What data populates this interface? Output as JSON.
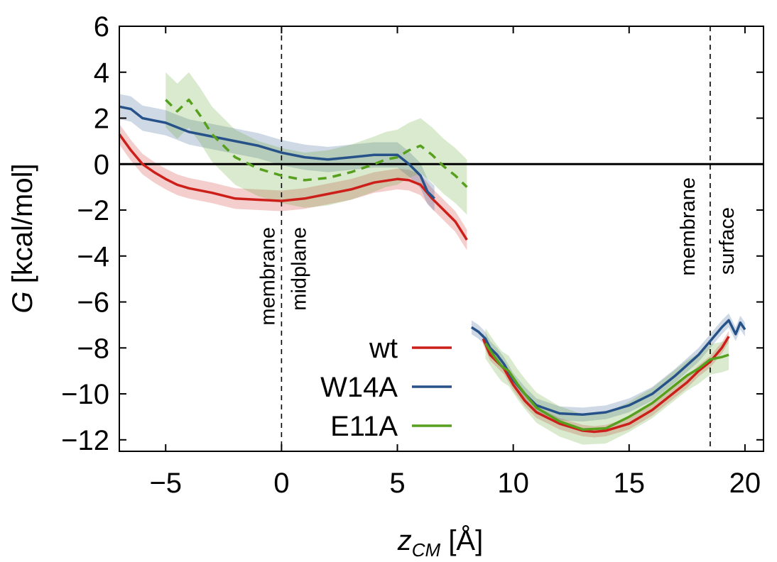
{
  "chart_data": {
    "type": "line",
    "xlabel_var": "z",
    "xlabel_sub": "CM",
    "xlabel_unit": " [Å]",
    "ylabel_var": "G",
    "ylabel_unit": " [kcal/mol]",
    "xlim": [
      -7,
      20.8
    ],
    "ylim": [
      -12.5,
      6
    ],
    "xticks": [
      -5,
      0,
      5,
      10,
      15,
      20
    ],
    "yticks": [
      6,
      4,
      2,
      0,
      -2,
      -4,
      -6,
      -8,
      -10,
      -12
    ],
    "zero_line": 0,
    "grid": false,
    "legend_position": "center-bottom",
    "annotations": [
      {
        "x": 0,
        "lines": [
          "membrane",
          "midplane"
        ]
      },
      {
        "x": 18.5,
        "lines": [
          "membrane",
          "surface"
        ]
      }
    ],
    "series": [
      {
        "name": "wt",
        "color": "#cc1f1a",
        "dashed": false,
        "band": 0.45,
        "segments": [
          [
            [
              -7,
              1.3
            ],
            [
              -6.5,
              0.6
            ],
            [
              -6,
              0.0
            ],
            [
              -5.5,
              -0.35
            ],
            [
              -5,
              -0.65
            ],
            [
              -4.5,
              -0.9
            ],
            [
              -4,
              -1.05
            ],
            [
              -3,
              -1.25
            ],
            [
              -2,
              -1.5
            ],
            [
              -1,
              -1.55
            ],
            [
              0,
              -1.6
            ],
            [
              1,
              -1.5
            ],
            [
              2,
              -1.3
            ],
            [
              3,
              -1.1
            ],
            [
              4,
              -0.8
            ],
            [
              5,
              -0.65
            ],
            [
              5.5,
              -0.7
            ],
            [
              6,
              -0.9
            ],
            [
              6.5,
              -1.5
            ],
            [
              7,
              -2.0
            ],
            [
              7.5,
              -2.5
            ],
            [
              8,
              -3.3
            ]
          ],
          [
            [
              8.7,
              -7.6
            ],
            [
              9,
              -8.3
            ],
            [
              9.3,
              -8.6
            ],
            [
              9.6,
              -8.9
            ],
            [
              10,
              -9.6
            ],
            [
              10.5,
              -10.3
            ],
            [
              11,
              -10.8
            ],
            [
              12,
              -11.3
            ],
            [
              13,
              -11.6
            ],
            [
              13.5,
              -11.65
            ],
            [
              14,
              -11.6
            ],
            [
              15,
              -11.3
            ],
            [
              16,
              -10.7
            ],
            [
              17,
              -9.9
            ],
            [
              17.5,
              -9.5
            ],
            [
              18,
              -9.0
            ],
            [
              18.5,
              -8.6
            ],
            [
              19,
              -8.0
            ],
            [
              19.3,
              -7.5
            ]
          ]
        ]
      },
      {
        "name": "W14A",
        "color": "#265289",
        "dashed": false,
        "band": 0.55,
        "segments": [
          [
            [
              -7,
              2.5
            ],
            [
              -6.5,
              2.4
            ],
            [
              -6,
              2.0
            ],
            [
              -5.5,
              1.9
            ],
            [
              -5,
              1.8
            ],
            [
              -4.5,
              1.6
            ],
            [
              -4,
              1.4
            ],
            [
              -3,
              1.2
            ],
            [
              -2,
              1.0
            ],
            [
              -1,
              0.8
            ],
            [
              0,
              0.5
            ],
            [
              1,
              0.3
            ],
            [
              2,
              0.2
            ],
            [
              3,
              0.3
            ],
            [
              4,
              0.4
            ],
            [
              5,
              0.4
            ],
            [
              5.5,
              0.0
            ],
            [
              6,
              -0.5
            ],
            [
              6.3,
              -1.2
            ],
            [
              6.6,
              -1.5
            ]
          ],
          [
            [
              8.2,
              -7.1
            ],
            [
              8.5,
              -7.3
            ],
            [
              8.8,
              -7.6
            ],
            [
              9,
              -8.0
            ],
            [
              9.3,
              -8.3
            ],
            [
              9.6,
              -8.7
            ],
            [
              10,
              -9.4
            ],
            [
              10.5,
              -10.0
            ],
            [
              11,
              -10.5
            ],
            [
              12,
              -10.85
            ],
            [
              13,
              -10.9
            ],
            [
              14,
              -10.8
            ],
            [
              15,
              -10.5
            ],
            [
              16,
              -10.0
            ],
            [
              17,
              -9.2
            ],
            [
              18,
              -8.3
            ],
            [
              18.5,
              -7.7
            ],
            [
              19,
              -7.1
            ],
            [
              19.3,
              -6.8
            ],
            [
              19.6,
              -7.4
            ],
            [
              19.8,
              -6.9
            ],
            [
              20,
              -7.2
            ]
          ]
        ]
      },
      {
        "name": "E11A",
        "color": "#56a01e",
        "dashed": true,
        "band": 1.2,
        "segments": [
          [
            [
              -5,
              2.8
            ],
            [
              -4.5,
              2.3
            ],
            [
              -4,
              2.8
            ],
            [
              -3.5,
              2.1
            ],
            [
              -3,
              1.3
            ],
            [
              -2.5,
              0.8
            ],
            [
              -2,
              0.3
            ],
            [
              -1,
              -0.2
            ],
            [
              0,
              -0.5
            ],
            [
              1,
              -0.7
            ],
            [
              2,
              -0.6
            ],
            [
              3,
              -0.35
            ],
            [
              4,
              0.0
            ],
            [
              4.5,
              0.2
            ],
            [
              5,
              0.3
            ],
            [
              5.5,
              0.6
            ],
            [
              6,
              0.8
            ],
            [
              6.5,
              0.4
            ],
            [
              7,
              -0.1
            ],
            [
              7.5,
              -0.5
            ],
            [
              8,
              -1.0
            ]
          ]
        ],
        "solid_segments": [
          [
            [
              8.8,
              -7.8
            ],
            [
              9.2,
              -8.4
            ],
            [
              9.5,
              -8.8
            ],
            [
              9.8,
              -9.0
            ],
            [
              10.2,
              -9.6
            ],
            [
              10.5,
              -10.0
            ],
            [
              11,
              -10.6
            ],
            [
              12,
              -11.2
            ],
            [
              13,
              -11.55
            ],
            [
              14,
              -11.5
            ],
            [
              15,
              -11.0
            ],
            [
              16,
              -10.4
            ],
            [
              17,
              -9.6
            ],
            [
              17.5,
              -9.2
            ],
            [
              18,
              -8.9
            ],
            [
              18.5,
              -8.5
            ],
            [
              19,
              -8.4
            ],
            [
              19.3,
              -8.3
            ]
          ]
        ]
      }
    ]
  }
}
